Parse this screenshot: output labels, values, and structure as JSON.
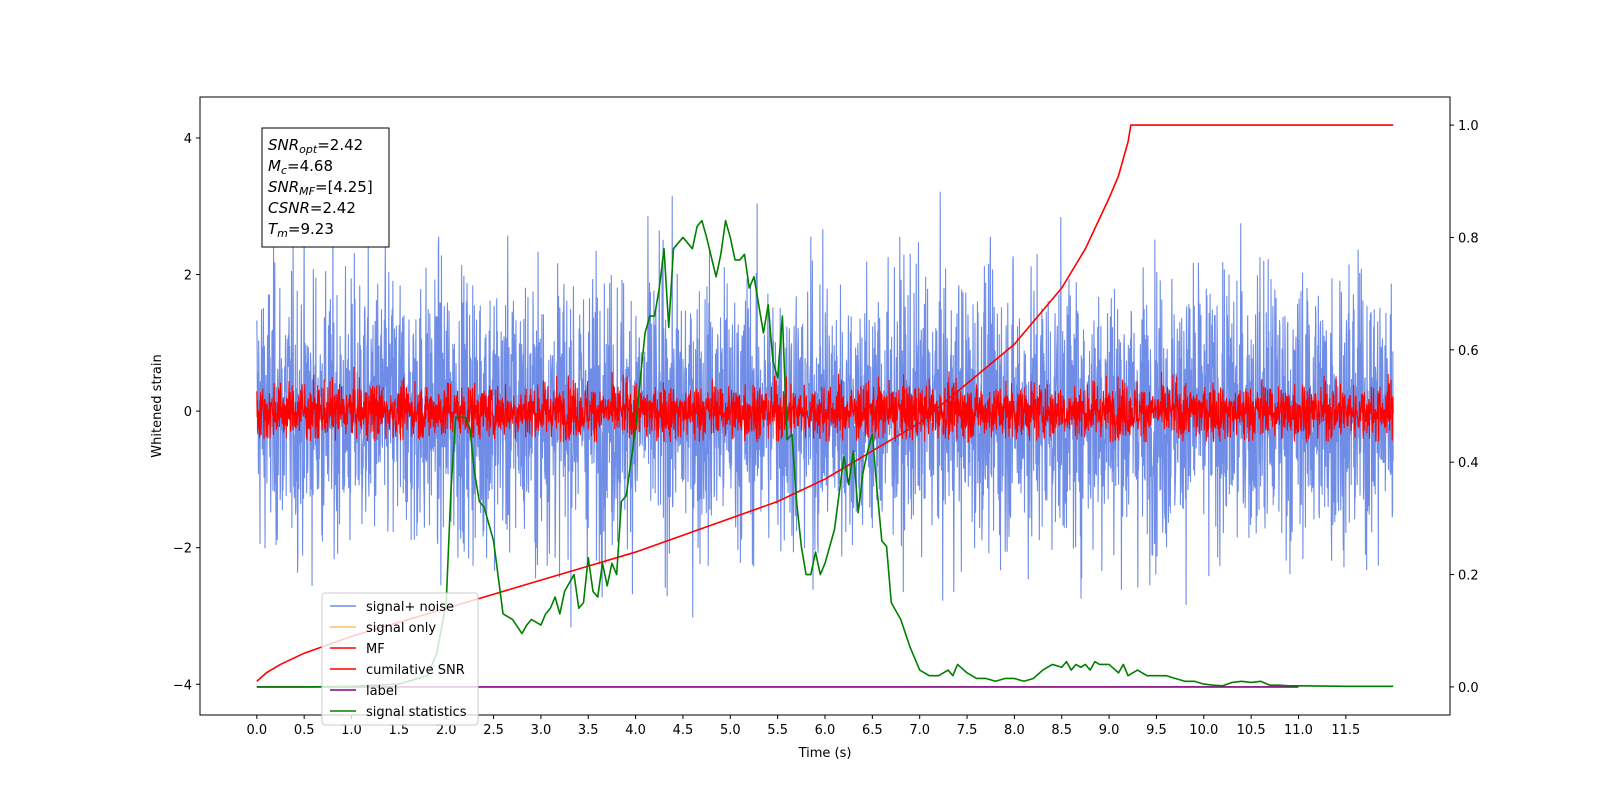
{
  "chart_data": {
    "type": "line",
    "title": "",
    "xlabel": "Time (s)",
    "ylabel": "Whitened strain",
    "ylabel_right": "",
    "xlim": [
      -0.6,
      12.6
    ],
    "ylim": [
      -4.45,
      4.6
    ],
    "y2lim": [
      -0.05,
      1.05
    ],
    "xticks": [
      0.0,
      0.5,
      1.0,
      1.5,
      2.0,
      2.5,
      3.0,
      3.5,
      4.0,
      4.5,
      5.0,
      5.5,
      6.0,
      6.5,
      7.0,
      7.5,
      8.0,
      8.5,
      9.0,
      9.5,
      10.0,
      10.5,
      11.0,
      11.5
    ],
    "xtick_labels": [
      "0.0",
      "0.5",
      "1.0",
      "1.5",
      "2.0",
      "2.5",
      "3.0",
      "3.5",
      "4.0",
      "4.5",
      "5.0",
      "5.5",
      "6.0",
      "6.5",
      "7.0",
      "7.5",
      "8.0",
      "8.5",
      "9.0",
      "9.5",
      "10.0",
      "10.5",
      "11.0",
      "11.5"
    ],
    "yticks": [
      -4,
      -2,
      0,
      2,
      4
    ],
    "ytick_labels": [
      "−4",
      "−2",
      "0",
      "2",
      "4"
    ],
    "y2ticks": [
      0.0,
      0.2,
      0.4,
      0.6,
      0.8,
      1.0
    ],
    "y2tick_labels": [
      "0.0",
      "0.2",
      "0.4",
      "0.6",
      "0.8",
      "1.0"
    ],
    "grid": false,
    "legend_position": "lower-left",
    "series": [
      {
        "name": "signal+ noise",
        "color": "#6f8de6",
        "axis": "left",
        "kind": "noise",
        "x_range": [
          0.0,
          12.0
        ],
        "sigma": 1.0,
        "approx_max": 4.15,
        "approx_min": -3.7
      },
      {
        "name": "signal only",
        "color": "#ffbf6b",
        "axis": "left",
        "kind": "hidden"
      },
      {
        "name": "MF",
        "color": "#ff0000",
        "axis": "left",
        "kind": "noise",
        "x_range": [
          0.0,
          12.0
        ],
        "sigma": 0.2,
        "approx_max": 1.0,
        "approx_min": -0.45
      },
      {
        "name": "cumilative SNR",
        "color": "#ff0000",
        "axis": "right",
        "kind": "line",
        "x": [
          0.0,
          0.1,
          0.25,
          0.5,
          1.0,
          1.5,
          2.0,
          2.5,
          3.0,
          3.5,
          4.0,
          4.5,
          5.0,
          5.5,
          6.0,
          6.5,
          7.0,
          7.5,
          8.0,
          8.25,
          8.5,
          8.75,
          9.0,
          9.1,
          9.2,
          9.23,
          12.0
        ],
        "y": [
          0.01,
          0.025,
          0.04,
          0.06,
          0.09,
          0.115,
          0.14,
          0.165,
          0.19,
          0.215,
          0.24,
          0.27,
          0.3,
          0.33,
          0.37,
          0.42,
          0.47,
          0.54,
          0.61,
          0.66,
          0.71,
          0.78,
          0.87,
          0.91,
          0.97,
          1.0,
          1.0
        ]
      },
      {
        "name": "label",
        "color": "#800080",
        "axis": "right",
        "kind": "line",
        "x": [
          0.0,
          11.0
        ],
        "y": [
          0.0,
          0.0
        ]
      },
      {
        "name": "signal statistics",
        "color": "#008000",
        "axis": "right",
        "kind": "line",
        "x": [
          0.0,
          0.5,
          1.0,
          1.5,
          1.8,
          1.9,
          2.0,
          2.05,
          2.1,
          2.2,
          2.25,
          2.3,
          2.35,
          2.4,
          2.5,
          2.6,
          2.7,
          2.8,
          2.85,
          2.9,
          3.0,
          3.05,
          3.1,
          3.15,
          3.2,
          3.25,
          3.35,
          3.4,
          3.45,
          3.5,
          3.55,
          3.6,
          3.65,
          3.7,
          3.75,
          3.8,
          3.85,
          3.9,
          3.95,
          4.0,
          4.05,
          4.1,
          4.15,
          4.2,
          4.25,
          4.3,
          4.35,
          4.4,
          4.5,
          4.6,
          4.65,
          4.7,
          4.75,
          4.85,
          4.9,
          4.95,
          5.0,
          5.05,
          5.1,
          5.15,
          5.2,
          5.25,
          5.3,
          5.35,
          5.4,
          5.45,
          5.5,
          5.55,
          5.6,
          5.65,
          5.7,
          5.75,
          5.8,
          5.85,
          5.9,
          5.95,
          6.0,
          6.1,
          6.2,
          6.25,
          6.3,
          6.35,
          6.4,
          6.45,
          6.5,
          6.55,
          6.6,
          6.65,
          6.7,
          6.8,
          6.9,
          6.95,
          7.0,
          7.1,
          7.2,
          7.3,
          7.35,
          7.4,
          7.5,
          7.6,
          7.7,
          7.8,
          7.9,
          8.0,
          8.1,
          8.2,
          8.3,
          8.4,
          8.5,
          8.55,
          8.6,
          8.65,
          8.7,
          8.75,
          8.8,
          8.85,
          8.9,
          9.0,
          9.1,
          9.15,
          9.2,
          9.3,
          9.4,
          9.5,
          9.6,
          9.7,
          9.8,
          9.9,
          10.0,
          10.1,
          10.2,
          10.3,
          10.4,
          10.5,
          10.6,
          10.7,
          10.8,
          10.9,
          11.0,
          11.5,
          12.0
        ],
        "y": [
          0.0,
          0.0,
          0.001,
          0.005,
          0.02,
          0.06,
          0.15,
          0.35,
          0.48,
          0.48,
          0.46,
          0.38,
          0.33,
          0.32,
          0.26,
          0.13,
          0.12,
          0.095,
          0.11,
          0.12,
          0.11,
          0.13,
          0.14,
          0.16,
          0.13,
          0.17,
          0.2,
          0.14,
          0.15,
          0.23,
          0.17,
          0.16,
          0.22,
          0.18,
          0.22,
          0.2,
          0.33,
          0.34,
          0.4,
          0.46,
          0.55,
          0.63,
          0.66,
          0.66,
          0.71,
          0.78,
          0.64,
          0.78,
          0.8,
          0.78,
          0.82,
          0.83,
          0.8,
          0.73,
          0.77,
          0.83,
          0.8,
          0.76,
          0.76,
          0.77,
          0.71,
          0.73,
          0.68,
          0.63,
          0.68,
          0.58,
          0.55,
          0.66,
          0.44,
          0.45,
          0.33,
          0.25,
          0.2,
          0.2,
          0.24,
          0.2,
          0.22,
          0.28,
          0.41,
          0.36,
          0.42,
          0.31,
          0.38,
          0.42,
          0.45,
          0.35,
          0.26,
          0.25,
          0.15,
          0.12,
          0.07,
          0.05,
          0.03,
          0.02,
          0.02,
          0.03,
          0.02,
          0.04,
          0.025,
          0.015,
          0.015,
          0.01,
          0.015,
          0.015,
          0.01,
          0.015,
          0.03,
          0.04,
          0.035,
          0.045,
          0.03,
          0.04,
          0.035,
          0.04,
          0.03,
          0.045,
          0.04,
          0.04,
          0.025,
          0.04,
          0.02,
          0.03,
          0.02,
          0.02,
          0.02,
          0.015,
          0.01,
          0.01,
          0.005,
          0.003,
          0.002,
          0.008,
          0.01,
          0.008,
          0.01,
          0.003,
          0.003,
          0.002,
          0.002,
          0.001,
          0.001
        ]
      }
    ],
    "annotation": {
      "lines": [
        {
          "sym": "SNR",
          "sub": "opt",
          "value": "=2.42"
        },
        {
          "sym": "M",
          "sub": "c",
          "value": "=4.68"
        },
        {
          "sym": "SNR",
          "sub": "MF",
          "value": "=[4.25]"
        },
        {
          "sym": "CSNR",
          "sub": "",
          "value": "=2.42"
        },
        {
          "sym": "T",
          "sub": "m",
          "value": "=9.23"
        }
      ]
    }
  }
}
